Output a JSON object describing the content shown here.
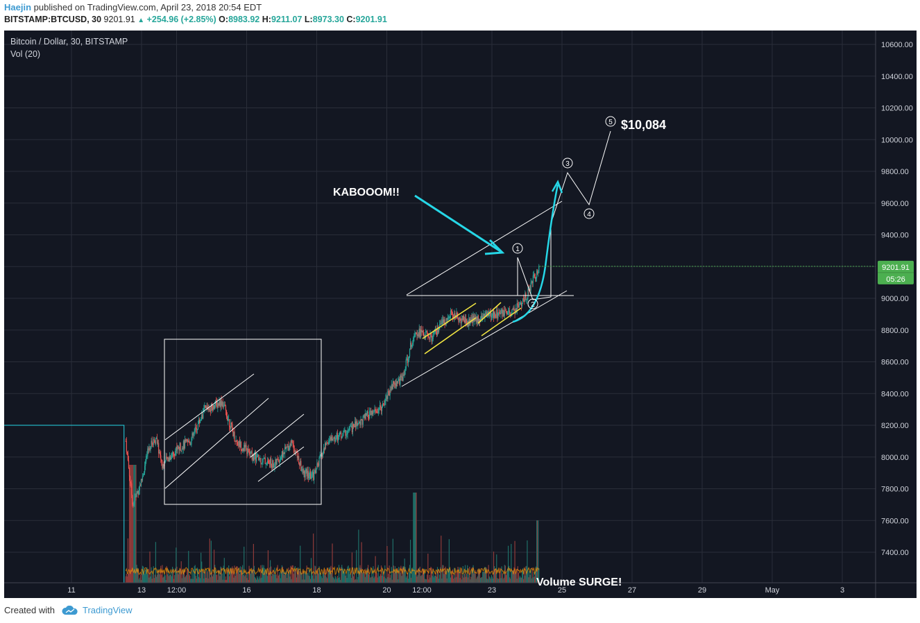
{
  "header": {
    "author": "Haejin",
    "published": "published on TradingView.com, April 23, 2018 20:54 EDT",
    "symbol": "BITSTAMP:BTCUSD, 30",
    "last": "9201.91",
    "change": "+254.96 (+2.85%)",
    "open_label": "O:",
    "open": "8983.92",
    "high_label": "H:",
    "high": "9211.07",
    "low_label": "L:",
    "low": "8973.30",
    "close_label": "C:",
    "close": "9201.91"
  },
  "legend": {
    "title": "Bitcoin / Dollar, 30, BITSTAMP",
    "volume": "Vol (20)"
  },
  "price_tag": {
    "value": "9201.91",
    "countdown": "05:26",
    "color": "#4caf50"
  },
  "annotations": {
    "kaboom": "KABOOOM!!",
    "target": "$10,084",
    "volume_surge": "Volume SURGE!",
    "wave_labels": [
      "1",
      "2",
      "3",
      "4",
      "5"
    ]
  },
  "colors": {
    "background": "#131722",
    "up": "#26a69a",
    "down": "#ef5350",
    "cyan": "#26d7e7",
    "yellow": "#f0e442",
    "white": "#ffffff"
  },
  "footer": {
    "created_with": "Created with",
    "brand": "TradingView"
  },
  "chart_data": {
    "type": "candlestick",
    "title": "Bitcoin / Dollar, 30, BITSTAMP",
    "y_axis": {
      "range": [
        7200,
        10700
      ],
      "ticks": [
        "10600.00",
        "10400.00",
        "10200.00",
        "10000.00",
        "9800.00",
        "9600.00",
        "9400.00",
        "9200.00",
        "9000.00",
        "8800.00",
        "8600.00",
        "8400.00",
        "8200.00",
        "8000.00",
        "7800.00",
        "7600.00",
        "7400.00"
      ],
      "tick_values": [
        10600,
        10400,
        10200,
        10000,
        9800,
        9600,
        9400,
        9200,
        9000,
        8800,
        8600,
        8400,
        8200,
        8000,
        7800,
        7600,
        7400
      ]
    },
    "x_axis": {
      "ticks": [
        "11",
        "13",
        "12:00",
        "16",
        "18",
        "20",
        "12:00",
        "23",
        "25",
        "27",
        "29",
        "May",
        "3"
      ],
      "tick_days": [
        11,
        13,
        14,
        16,
        18,
        20,
        21,
        23,
        25,
        27,
        29,
        31,
        33
      ],
      "range_days": [
        9.1,
        34.0
      ]
    },
    "price_path": [
      [
        9.1,
        8200
      ],
      [
        12.5,
        8200
      ],
      [
        12.75,
        7700
      ],
      [
        13.0,
        7850
      ],
      [
        13.2,
        8050
      ],
      [
        13.4,
        8120
      ],
      [
        13.6,
        7950
      ],
      [
        14.0,
        8050
      ],
      [
        14.4,
        8100
      ],
      [
        14.8,
        8300
      ],
      [
        15.3,
        8350
      ],
      [
        15.7,
        8100
      ],
      [
        16.2,
        8000
      ],
      [
        16.8,
        7950
      ],
      [
        17.3,
        8100
      ],
      [
        17.6,
        7900
      ],
      [
        17.9,
        7880
      ],
      [
        18.3,
        8100
      ],
      [
        18.8,
        8150
      ],
      [
        19.4,
        8250
      ],
      [
        19.8,
        8300
      ],
      [
        20.15,
        8450
      ],
      [
        20.45,
        8500
      ],
      [
        20.8,
        8800
      ],
      [
        21.3,
        8750
      ],
      [
        21.8,
        8900
      ],
      [
        22.3,
        8850
      ],
      [
        22.9,
        8900
      ],
      [
        23.5,
        8900
      ],
      [
        23.9,
        8980
      ],
      [
        24.35,
        9202
      ]
    ],
    "volume_surge_day": 24.3,
    "last_close": 9201.91
  }
}
